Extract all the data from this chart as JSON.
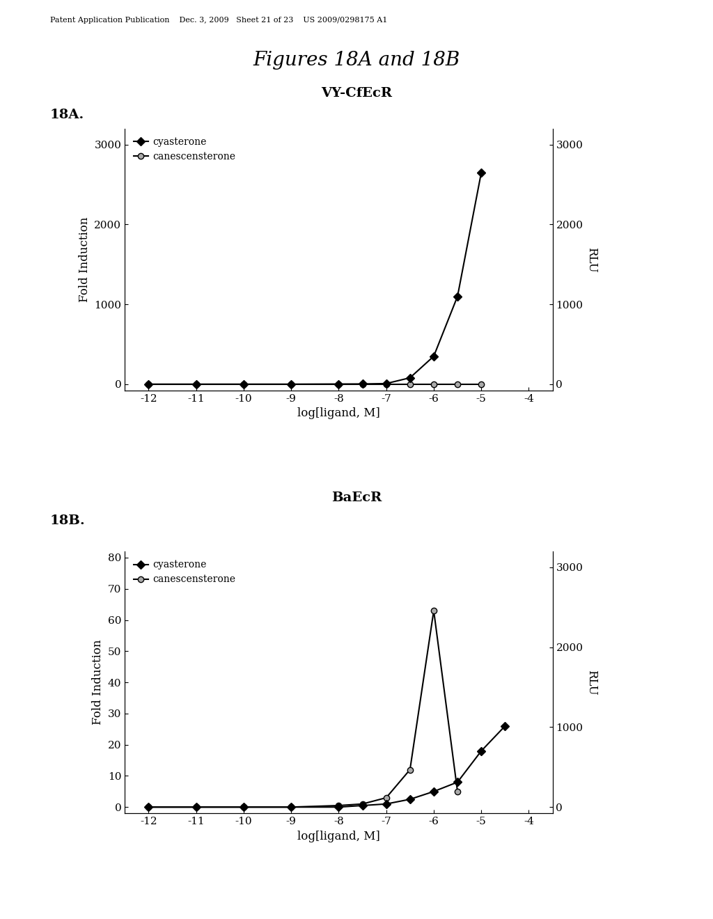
{
  "fig_title": "Figures 18A and 18B",
  "patent_header": "Patent Application Publication    Dec. 3, 2009   Sheet 21 of 23    US 2009/0298175 A1",
  "panel_A": {
    "label": "18A.",
    "title": "VY-CfEcR",
    "xlabel": "log[ligand, M]",
    "ylabel_left": "Fold Induction",
    "ylabel_right": "RLU",
    "xlim": [
      -12.5,
      -3.5
    ],
    "xticks": [
      -12,
      -11,
      -10,
      -9,
      -8,
      -7,
      -6,
      -5,
      -4
    ],
    "xticklabels": [
      "-12",
      "-11",
      "-10",
      "-9",
      "-8",
      "-7",
      "-6",
      "-5",
      "-4"
    ],
    "ylim_left": [
      -80,
      3200
    ],
    "yticks_left": [
      0,
      1000,
      2000,
      3000
    ],
    "ylim_right": [
      -80,
      3200
    ],
    "yticks_right": [
      0,
      1000,
      2000,
      3000
    ],
    "cyasterone_x": [
      -12,
      -11,
      -10,
      -9,
      -8,
      -7.5,
      -7,
      -6.5,
      -6,
      -5.5,
      -5
    ],
    "cyasterone_y": [
      0,
      0,
      0,
      0,
      2,
      3,
      8,
      80,
      350,
      1100,
      2650
    ],
    "canescensterone_x": [
      -12,
      -11,
      -10,
      -9,
      -8,
      -7.5,
      -7,
      -6.5,
      -6,
      -5.5,
      -5
    ],
    "canescensterone_y": [
      0,
      0,
      0,
      0,
      0,
      0,
      0,
      0,
      0,
      0,
      0
    ]
  },
  "panel_B": {
    "label": "18B.",
    "title": "BaEcR",
    "xlabel": "log[ligand, M]",
    "ylabel_left": "Fold Induction",
    "ylabel_right": "RLU",
    "xlim": [
      -12.5,
      -3.5
    ],
    "xticks": [
      -12,
      -11,
      -10,
      -9,
      -8,
      -7,
      -6,
      -5,
      -4
    ],
    "xticklabels": [
      "-12",
      "-11",
      "-10",
      "-9",
      "-8",
      "-7",
      "-6",
      "-5",
      "-4"
    ],
    "ylim_left": [
      -2,
      82
    ],
    "yticks_left": [
      0,
      10,
      20,
      30,
      40,
      50,
      60,
      70,
      80
    ],
    "ylim_right": [
      -80,
      3200
    ],
    "yticks_right": [
      0,
      1000,
      2000,
      3000
    ],
    "cyasterone_x": [
      -12,
      -11,
      -10,
      -9,
      -8,
      -7.5,
      -7,
      -6.5,
      -6,
      -5.5,
      -5,
      -4.5
    ],
    "cyasterone_y": [
      0,
      0,
      0,
      0,
      0,
      0.5,
      1,
      2.5,
      5,
      8,
      18,
      26
    ],
    "canescensterone_x": [
      -12,
      -11,
      -10,
      -9,
      -8,
      -7.5,
      -7,
      -6.5,
      -6,
      -5.5
    ],
    "canescensterone_y": [
      0,
      0,
      0,
      0,
      0.5,
      1,
      3,
      12,
      63,
      5
    ]
  },
  "line_color": "#000000",
  "cyasterone_marker": "D",
  "canescensterone_marker": "o",
  "marker_size": 6,
  "line_width": 1.5,
  "bg_color": "#ffffff",
  "legend_cyasterone": "cyasterone",
  "legend_canescensterone": "canescensterone"
}
